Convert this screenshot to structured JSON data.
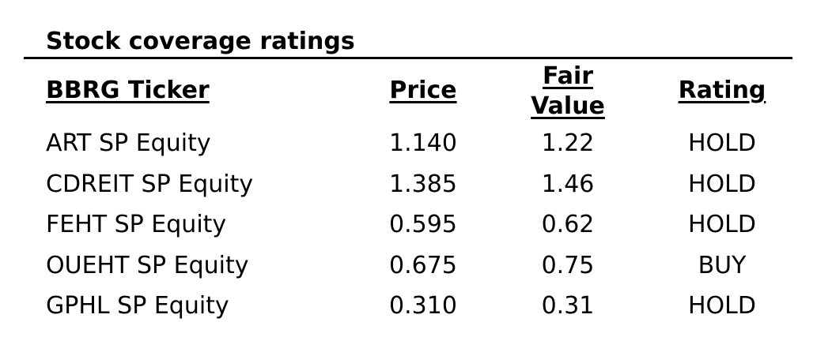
{
  "title": "Stock coverage ratings",
  "headers": {
    "ticker": "BBRG Ticker",
    "price": "Price",
    "fair_value_line1": "Fair",
    "fair_value_line2": "Value",
    "rating": "Rating"
  },
  "rows": [
    {
      "ticker": "ART SP Equity",
      "price": "1.140",
      "fair_value": "1.22",
      "rating": "HOLD"
    },
    {
      "ticker": "CDREIT SP Equity",
      "price": "1.385",
      "fair_value": "1.46",
      "rating": "HOLD"
    },
    {
      "ticker": "FEHT SP Equity",
      "price": "0.595",
      "fair_value": "0.62",
      "rating": "HOLD"
    },
    {
      "ticker": "OUEHT SP Equity",
      "price": "0.675",
      "fair_value": "0.75",
      "rating": "BUY"
    },
    {
      "ticker": "GPHL SP Equity",
      "price": "0.310",
      "fair_value": "0.31",
      "rating": "HOLD"
    }
  ]
}
